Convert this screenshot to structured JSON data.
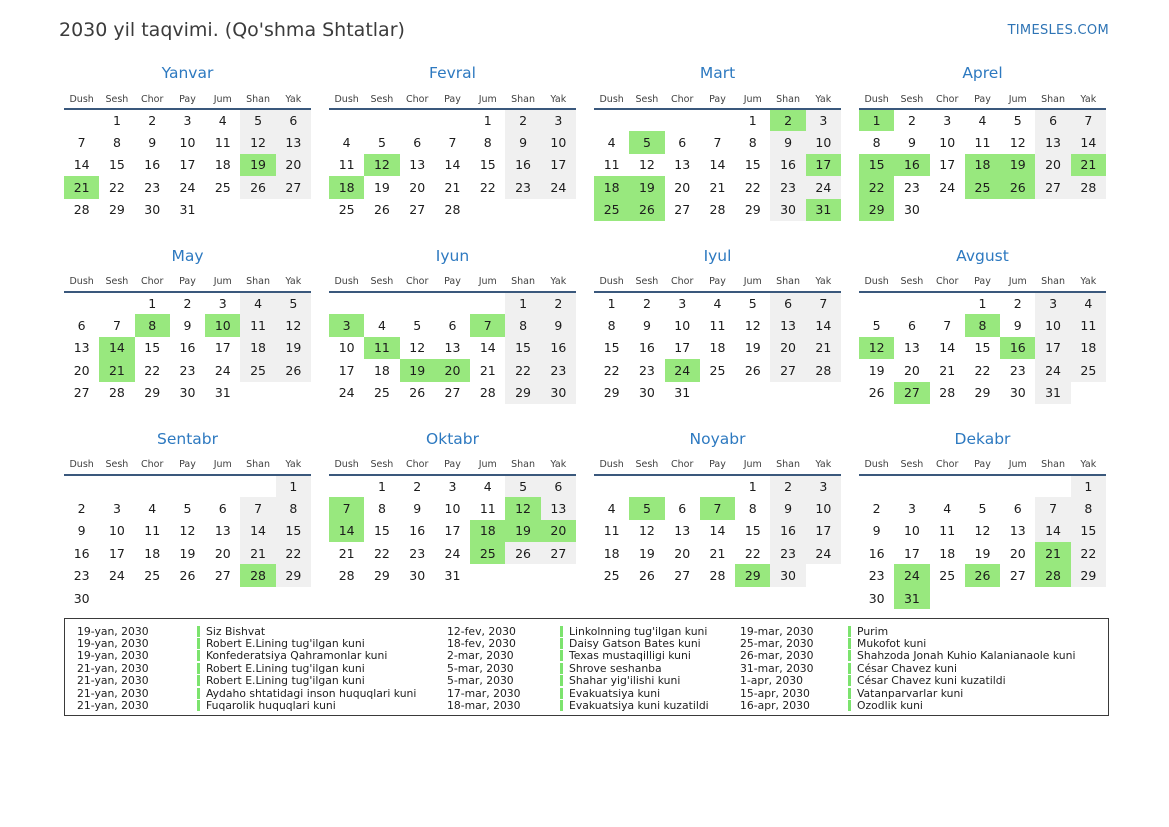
{
  "page": {
    "title": "2030 yil taqvimi. (Qo'shma Shtatlar)",
    "site": "TIMESLES.COM"
  },
  "colors": {
    "accent_blue": "#2d79c0",
    "link_blue": "#2e74b5",
    "header_rule": "#3a587c",
    "holiday_green": "#98e87e",
    "weekend_gray": "#f0f0f0",
    "legend_tick_green": "#7ce36e"
  },
  "weekdays": [
    "Dush",
    "Sesh",
    "Chor",
    "Pay",
    "Jum",
    "Shan",
    "Yak"
  ],
  "months": [
    {
      "name": "Yanvar",
      "first_col": 1,
      "days": 31,
      "holidays": [
        19,
        21
      ]
    },
    {
      "name": "Fevral",
      "first_col": 4,
      "days": 28,
      "holidays": [
        12,
        18
      ]
    },
    {
      "name": "Mart",
      "first_col": 4,
      "days": 31,
      "holidays": [
        2,
        5,
        17,
        18,
        19,
        25,
        26,
        31
      ]
    },
    {
      "name": "Aprel",
      "first_col": 0,
      "days": 30,
      "holidays": [
        1,
        15,
        16,
        18,
        19,
        21,
        22,
        25,
        26,
        29
      ]
    },
    {
      "name": "May",
      "first_col": 2,
      "days": 31,
      "holidays": [
        8,
        10,
        14,
        21
      ]
    },
    {
      "name": "Iyun",
      "first_col": 5,
      "days": 30,
      "holidays": [
        3,
        7,
        11,
        19,
        20
      ]
    },
    {
      "name": "Iyul",
      "first_col": 0,
      "days": 31,
      "holidays": [
        24
      ]
    },
    {
      "name": "Avgust",
      "first_col": 3,
      "days": 31,
      "holidays": [
        8,
        12,
        16,
        27
      ]
    },
    {
      "name": "Sentabr",
      "first_col": 6,
      "days": 30,
      "holidays": [
        28
      ]
    },
    {
      "name": "Oktabr",
      "first_col": 1,
      "days": 31,
      "holidays": [
        7,
        12,
        14,
        18,
        19,
        20,
        25
      ]
    },
    {
      "name": "Noyabr",
      "first_col": 4,
      "days": 30,
      "holidays": [
        5,
        7,
        29
      ]
    },
    {
      "name": "Dekabr",
      "first_col": 6,
      "days": 31,
      "holidays": [
        21,
        24,
        26,
        28,
        31
      ]
    }
  ],
  "legend": {
    "columns": [
      {
        "items": [
          {
            "date": "19-yan, 2030",
            "label": "Siz Bishvat"
          },
          {
            "date": "19-yan, 2030",
            "label": "Robert E.Lining tug'ilgan kuni"
          },
          {
            "date": "19-yan, 2030",
            "label": "Konfederatsiya Qahramonlar kuni"
          },
          {
            "date": "21-yan, 2030",
            "label": "Robert E.Lining tug'ilgan kuni"
          },
          {
            "date": "21-yan, 2030",
            "label": "Robert E.Lining tug'ilgan kuni"
          },
          {
            "date": "21-yan, 2030",
            "label": "Aydaho shtatidagi inson huquqlari kuni"
          },
          {
            "date": "21-yan, 2030",
            "label": "Fuqarolik huquqlari kuni"
          }
        ]
      },
      {
        "items": [
          {
            "date": "12-fev, 2030",
            "label": "Linkolnning tug'ilgan kuni"
          },
          {
            "date": "18-fev, 2030",
            "label": "Daisy Gatson Bates kuni"
          },
          {
            "date": "2-mar, 2030",
            "label": "Texas mustaqilligi kuni"
          },
          {
            "date": "5-mar, 2030",
            "label": "Shrove seshanba"
          },
          {
            "date": "5-mar, 2030",
            "label": "Shahar yig'ilishi kuni"
          },
          {
            "date": "17-mar, 2030",
            "label": "Evakuatsiya kuni"
          },
          {
            "date": "18-mar, 2030",
            "label": "Evakuatsiya kuni kuzatildi"
          }
        ]
      },
      {
        "items": [
          {
            "date": "19-mar, 2030",
            "label": "Purim"
          },
          {
            "date": "25-mar, 2030",
            "label": "Mukofot kuni"
          },
          {
            "date": "26-mar, 2030",
            "label": "Shahzoda Jonah Kuhio Kalanianaole kuni"
          },
          {
            "date": "31-mar, 2030",
            "label": "César Chavez kuni"
          },
          {
            "date": "1-apr, 2030",
            "label": "César Chavez kuni kuzatildi"
          },
          {
            "date": "15-apr, 2030",
            "label": "Vatanparvarlar kuni"
          },
          {
            "date": "16-apr, 2030",
            "label": "Ozodlik kuni"
          }
        ]
      }
    ]
  }
}
